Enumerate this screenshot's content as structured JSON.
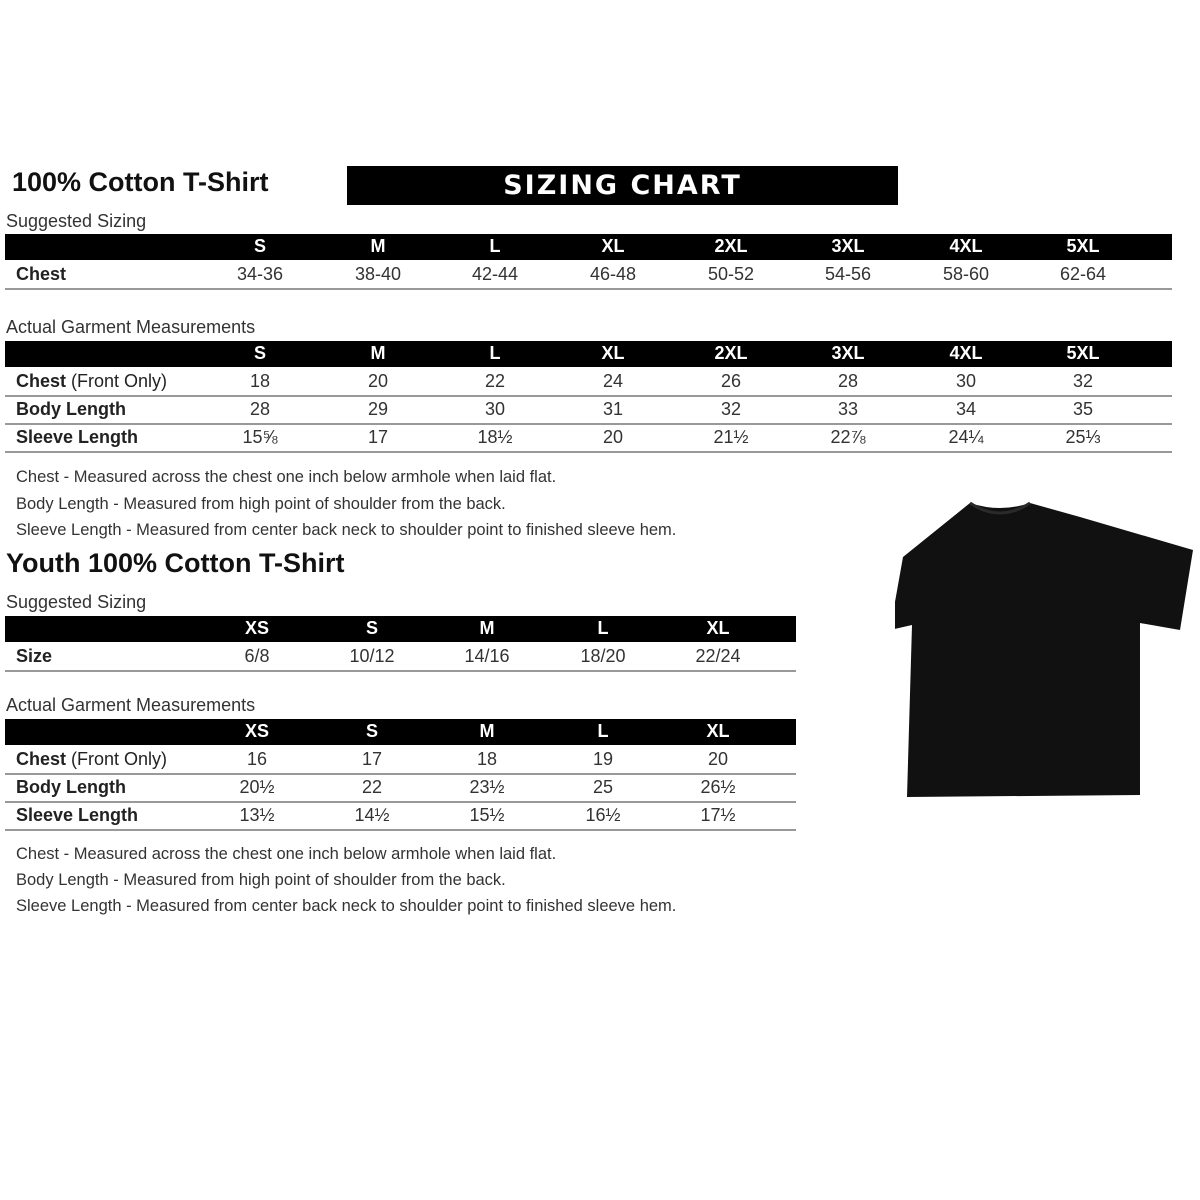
{
  "adult": {
    "title": "100% Cotton T-Shirt",
    "banner": "SIZING CHART",
    "suggested_label": "Suggested Sizing",
    "sizes": [
      "S",
      "M",
      "L",
      "XL",
      "2XL",
      "3XL",
      "4XL",
      "5XL"
    ],
    "suggested_rows": [
      {
        "label": "Chest",
        "label_note": "",
        "values": [
          "34-36",
          "38-40",
          "42-44",
          "46-48",
          "50-52",
          "54-56",
          "58-60",
          "62-64"
        ]
      }
    ],
    "actual_label": "Actual Garment Measurements",
    "actual_rows": [
      {
        "label": "Chest",
        "label_note": " (Front Only)",
        "values": [
          "18",
          "20",
          "22",
          "24",
          "26",
          "28",
          "30",
          "32"
        ]
      },
      {
        "label": "Body Length",
        "label_note": "",
        "values": [
          "28",
          "29",
          "30",
          "31",
          "32",
          "33",
          "34",
          "35"
        ]
      },
      {
        "label": "Sleeve Length",
        "label_note": "",
        "values": [
          "15⅝",
          "17",
          "18½",
          "20",
          "21½",
          "22⅞",
          "24¼",
          "25⅓"
        ]
      }
    ],
    "notes": [
      "Chest - Measured across the chest one inch below armhole when laid flat.",
      "Body Length - Measured from high point of shoulder from the back.",
      "Sleeve Length - Measured from center back neck to shoulder point to finished sleeve hem."
    ]
  },
  "youth": {
    "title": "Youth 100% Cotton T-Shirt",
    "suggested_label": "Suggested Sizing",
    "sizes": [
      "XS",
      "S",
      "M",
      "L",
      "XL"
    ],
    "suggested_rows": [
      {
        "label": "Size",
        "label_note": "",
        "values": [
          "6/8",
          "10/12",
          "14/16",
          "18/20",
          "22/24"
        ]
      }
    ],
    "actual_label": "Actual Garment Measurements",
    "actual_rows": [
      {
        "label": "Chest",
        "label_note": " (Front Only)",
        "values": [
          "16",
          "17",
          "18",
          "19",
          "20"
        ]
      },
      {
        "label": "Body Length",
        "label_note": "",
        "values": [
          "20½",
          "22",
          "23½",
          "25",
          "26½"
        ]
      },
      {
        "label": "Sleeve Length",
        "label_note": "",
        "values": [
          "13½",
          "14½",
          "15½",
          "16½",
          "17½"
        ]
      }
    ],
    "notes": [
      "Chest - Measured across the chest one inch below armhole when laid flat.",
      "Body Length - Measured from high point of shoulder from the back.",
      "Sleeve Length - Measured from center back neck to shoulder point to finished sleeve hem."
    ]
  },
  "tshirt_color": "#111111"
}
